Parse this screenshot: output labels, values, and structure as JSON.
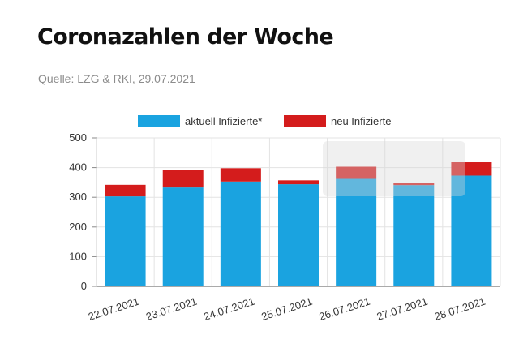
{
  "header": {
    "title": "Coronazahlen der Woche",
    "source": "Quelle: LZG & RKI, 29.07.2021"
  },
  "chart_data": {
    "type": "bar",
    "stacked": true,
    "categories": [
      "22.07.2021",
      "23.07.2021",
      "24.07.2021",
      "25.07.2021",
      "26.07.2021",
      "27.07.2021",
      "28.07.2021"
    ],
    "series": [
      {
        "name": "aktuell Infizierte*",
        "color": "#1aa3e0",
        "values": [
          303,
          333,
          353,
          344,
          362,
          341,
          373
        ]
      },
      {
        "name": "neu Infizierte",
        "color": "#d41c1c",
        "values": [
          39,
          58,
          45,
          13,
          41,
          8,
          45
        ]
      }
    ],
    "ylim": [
      0,
      500
    ],
    "yticks": [
      0,
      100,
      200,
      300,
      400,
      500
    ],
    "grid": true,
    "legend_position": "top"
  }
}
